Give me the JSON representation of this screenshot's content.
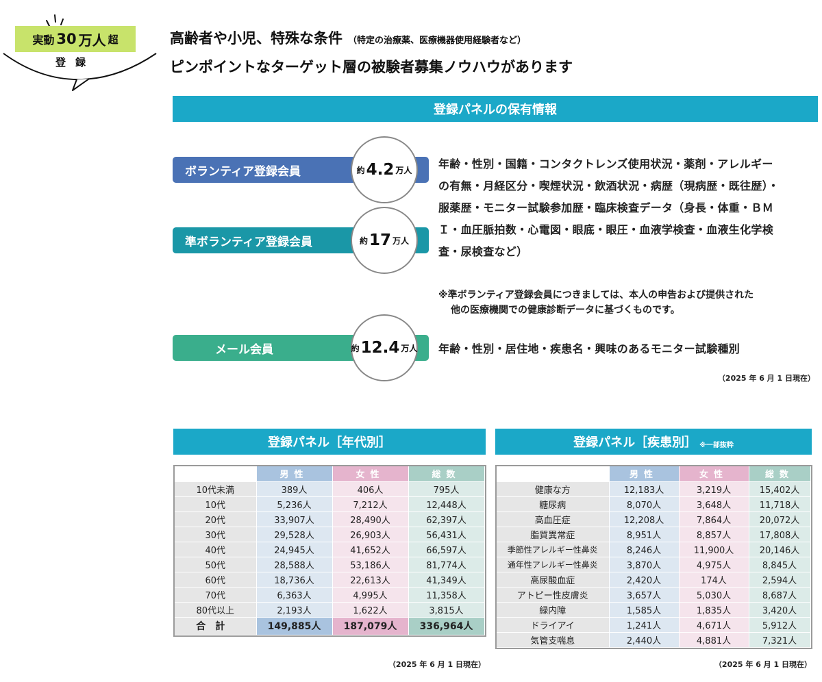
{
  "badge": {
    "prefix": "実動",
    "number": "30",
    "big_unit": "万人",
    "suffix": "超",
    "sub": "登録",
    "accent": "#c8e36b"
  },
  "headline": {
    "line1": "高齢者や小児、特殊な条件",
    "line1_paren": "（特定の治療薬、医療機器使用経験者など）",
    "line2": "ピンポイントなターゲット層の被験者募集ノウハウがあります"
  },
  "section_title": "登録パネルの保有情報",
  "members": [
    {
      "label": "ボランティア登録会員",
      "count_prefix": "約",
      "count_value": "4.2",
      "count_unit": "万人",
      "color": "#4a72b5"
    },
    {
      "label": "準ボランティア登録会員",
      "count_prefix": "約",
      "count_value": "17",
      "count_unit": "万人",
      "color": "#1a97a7"
    },
    {
      "label": "メール会員",
      "count_prefix": "約",
      "count_value": "12.4",
      "count_unit": "万人",
      "color": "#3aae8c"
    }
  ],
  "desc1": {
    "lines": [
      "年齢・性別・国籍・コンタクトレンズ使用状況・薬剤・アレルギー",
      "の有無・月経区分・喫煙状況・飲酒状況・病歴（現病歴・既往歴）・",
      "服薬歴・モニター試験参加歴・臨床検査データ（身長・体重・ＢＭ",
      "Ｉ・血圧脈拍数・心電図・眼底・眼圧・血液学検査・血液生化学検",
      "査・尿検査など）"
    ]
  },
  "note": {
    "line1": "※準ボランティア登録会員につきましては、本人の申告および提供された",
    "line2": "他の医療機関での健康診断データに基づくものです。"
  },
  "desc2": "年齢・性別・居住地・疾患名・興味のあるモニター試験種別",
  "date_note": "（2025 年 6 月 1 日現在）",
  "age_table": {
    "title": "登録パネル［年代別］",
    "headers": {
      "male": "男性",
      "female": "女性",
      "total": "総数"
    },
    "rows": [
      {
        "label": "10代未満",
        "male": "389人",
        "female": "406人",
        "total": "795人"
      },
      {
        "label": "10代",
        "male": "5,236人",
        "female": "7,212人",
        "total": "12,448人"
      },
      {
        "label": "20代",
        "male": "33,907人",
        "female": "28,490人",
        "total": "62,397人"
      },
      {
        "label": "30代",
        "male": "29,528人",
        "female": "26,903人",
        "total": "56,431人"
      },
      {
        "label": "40代",
        "male": "24,945人",
        "female": "41,652人",
        "total": "66,597人"
      },
      {
        "label": "50代",
        "male": "28,588人",
        "female": "53,186人",
        "total": "81,774人"
      },
      {
        "label": "60代",
        "male": "18,736人",
        "female": "22,613人",
        "total": "41,349人"
      },
      {
        "label": "70代",
        "male": "6,363人",
        "female": "4,995人",
        "total": "11,358人"
      },
      {
        "label": "80代以上",
        "male": "2,193人",
        "female": "1,622人",
        "total": "3,815人"
      }
    ],
    "total": {
      "label": "合計",
      "male": "149,885人",
      "female": "187,079人",
      "total": "336,964人"
    },
    "date": "（2025 年 6 月 1 日現在）"
  },
  "disease_table": {
    "title": "登録パネル［疾患別］",
    "title_note": "※一部抜粋",
    "headers": {
      "male": "男性",
      "female": "女性",
      "total": "総数"
    },
    "rows": [
      {
        "label": "健康な方",
        "male": "12,183人",
        "female": "3,219人",
        "total": "15,402人"
      },
      {
        "label": "糖尿病",
        "male": "8,070人",
        "female": "3,648人",
        "total": "11,718人"
      },
      {
        "label": "高血圧症",
        "male": "12,208人",
        "female": "7,864人",
        "total": "20,072人"
      },
      {
        "label": "脂質異常症",
        "male": "8,951人",
        "female": "8,857人",
        "total": "17,808人"
      },
      {
        "label": "季節性アレルギー性鼻炎",
        "male": "8,246人",
        "female": "11,900人",
        "total": "20,146人"
      },
      {
        "label": "通年性アレルギー性鼻炎",
        "male": "3,870人",
        "female": "4,975人",
        "total": "8,845人"
      },
      {
        "label": "高尿酸血症",
        "male": "2,420人",
        "female": "174人",
        "total": "2,594人"
      },
      {
        "label": "アトピー性皮膚炎",
        "male": "3,657人",
        "female": "5,030人",
        "total": "8,687人"
      },
      {
        "label": "緑内障",
        "male": "1,585人",
        "female": "1,835人",
        "total": "3,420人"
      },
      {
        "label": "ドライアイ",
        "male": "1,241人",
        "female": "4,671人",
        "total": "5,912人"
      },
      {
        "label": "気管支喘息",
        "male": "2,440人",
        "female": "4,881人",
        "total": "7,321人"
      }
    ],
    "date": "（2025 年 6 月 1 日現在）"
  }
}
